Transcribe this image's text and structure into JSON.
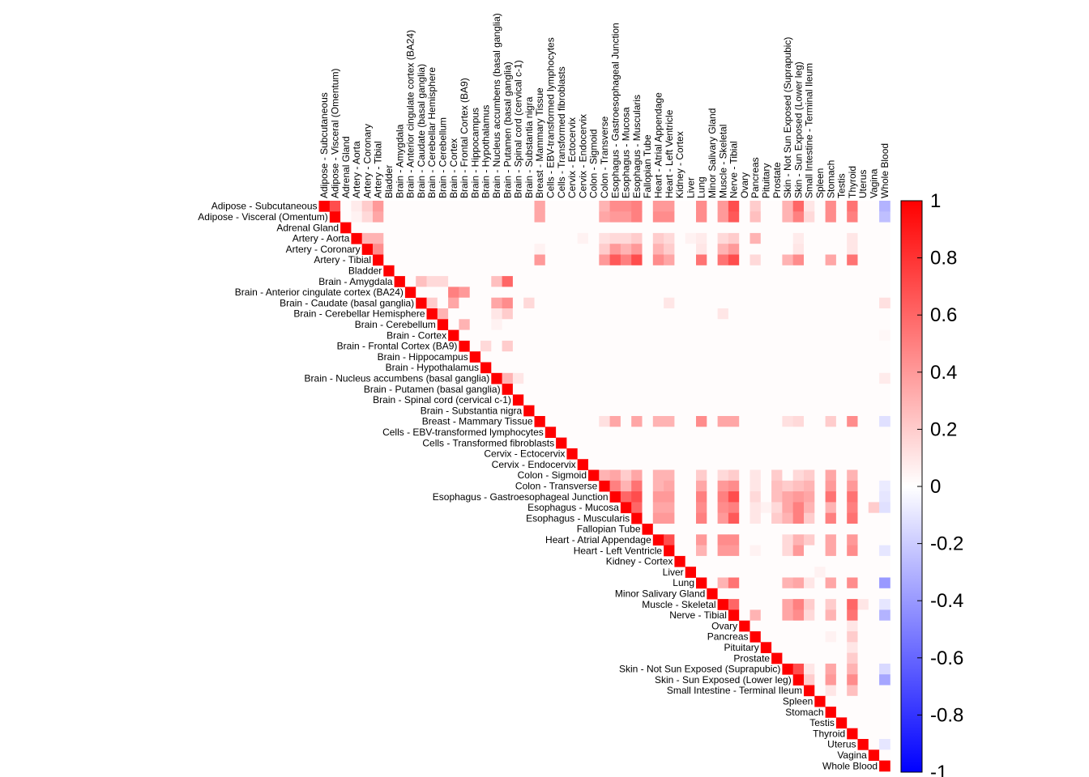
{
  "chart_data": {
    "type": "heatmap",
    "layout": "upper-triangle correlation matrix",
    "labels": [
      "Adipose - Subcutaneous",
      "Adipose - Visceral (Omentum)",
      "Adrenal Gland",
      "Artery - Aorta",
      "Artery - Coronary",
      "Artery - Tibial",
      "Bladder",
      "Brain - Amygdala",
      "Brain - Anterior cingulate cortex (BA24)",
      "Brain - Caudate (basal ganglia)",
      "Brain - Cerebellar Hemisphere",
      "Brain - Cerebellum",
      "Brain - Cortex",
      "Brain - Frontal Cortex (BA9)",
      "Brain - Hippocampus",
      "Brain - Hypothalamus",
      "Brain - Nucleus accumbens (basal ganglia)",
      "Brain - Putamen (basal ganglia)",
      "Brain - Spinal cord (cervical c-1)",
      "Brain - Substantia nigra",
      "Breast - Mammary Tissue",
      "Cells - EBV-transformed lymphocytes",
      "Cells - Transformed fibroblasts",
      "Cervix - Ectocervix",
      "Cervix - Endocervix",
      "Colon - Sigmoid",
      "Colon - Transverse",
      "Esophagus - Gastroesophageal Junction",
      "Esophagus - Mucosa",
      "Esophagus - Muscularis",
      "Fallopian Tube",
      "Heart - Atrial Appendage",
      "Heart - Left Ventricle",
      "Kidney - Cortex",
      "Liver",
      "Lung",
      "Minor Salivary Gland",
      "Muscle - Skeletal",
      "Nerve - Tibial",
      "Ovary",
      "Pancreas",
      "Pituitary",
      "Prostate",
      "Skin - Not Sun Exposed (Suprapubic)",
      "Skin - Sun Exposed (Lower leg)",
      "Small Intestine - Terminal Ileum",
      "Spleen",
      "Stomach",
      "Testis",
      "Thyroid",
      "Uterus",
      "Vagina",
      "Whole Blood"
    ],
    "colorbar": {
      "min": -1,
      "max": 1,
      "ticks": [
        "1",
        "0.8",
        "0.6",
        "0.4",
        "0.2",
        "0",
        "-0.2",
        "-0.4",
        "-0.6",
        "-0.8",
        "-1"
      ],
      "low_color": "#0000ff",
      "mid_color": "#ffffff",
      "high_color": "#ff0000"
    },
    "default_offdiag": 0.01,
    "diagonal": 1,
    "cells": [
      [
        0,
        1,
        0.7
      ],
      [
        0,
        3,
        0.08
      ],
      [
        0,
        4,
        0.2
      ],
      [
        0,
        5,
        0.4
      ],
      [
        0,
        20,
        0.35
      ],
      [
        0,
        26,
        0.3
      ],
      [
        0,
        27,
        0.45
      ],
      [
        0,
        28,
        0.45
      ],
      [
        0,
        29,
        0.5
      ],
      [
        0,
        31,
        0.4
      ],
      [
        0,
        32,
        0.4
      ],
      [
        0,
        35,
        0.45
      ],
      [
        0,
        37,
        0.4
      ],
      [
        0,
        38,
        0.7
      ],
      [
        0,
        40,
        0.2
      ],
      [
        0,
        43,
        0.3
      ],
      [
        0,
        44,
        0.6
      ],
      [
        0,
        45,
        0.1
      ],
      [
        0,
        47,
        0.45
      ],
      [
        0,
        49,
        0.55
      ],
      [
        0,
        52,
        -0.3
      ],
      [
        1,
        3,
        0.05
      ],
      [
        1,
        4,
        0.15
      ],
      [
        1,
        5,
        0.35
      ],
      [
        1,
        20,
        0.35
      ],
      [
        1,
        26,
        0.35
      ],
      [
        1,
        27,
        0.4
      ],
      [
        1,
        28,
        0.4
      ],
      [
        1,
        29,
        0.5
      ],
      [
        1,
        31,
        0.45
      ],
      [
        1,
        32,
        0.45
      ],
      [
        1,
        35,
        0.45
      ],
      [
        1,
        37,
        0.4
      ],
      [
        1,
        38,
        0.65
      ],
      [
        1,
        40,
        0.25
      ],
      [
        1,
        43,
        0.3
      ],
      [
        1,
        44,
        0.5
      ],
      [
        1,
        45,
        0.15
      ],
      [
        1,
        47,
        0.45
      ],
      [
        1,
        49,
        0.5
      ],
      [
        1,
        52,
        -0.25
      ],
      [
        3,
        4,
        0.3
      ],
      [
        3,
        5,
        0.3
      ],
      [
        3,
        24,
        0.05
      ],
      [
        3,
        26,
        0.12
      ],
      [
        3,
        27,
        0.15
      ],
      [
        3,
        28,
        0.15
      ],
      [
        3,
        29,
        0.2
      ],
      [
        3,
        31,
        0.2
      ],
      [
        3,
        32,
        0.15
      ],
      [
        3,
        34,
        0.05
      ],
      [
        3,
        35,
        0.08
      ],
      [
        3,
        37,
        0.15
      ],
      [
        3,
        38,
        0.2
      ],
      [
        3,
        40,
        0.3
      ],
      [
        3,
        44,
        0.08
      ],
      [
        3,
        49,
        0.1
      ],
      [
        4,
        5,
        0.45
      ],
      [
        4,
        20,
        0.05
      ],
      [
        4,
        26,
        0.2
      ],
      [
        4,
        27,
        0.4
      ],
      [
        4,
        28,
        0.3
      ],
      [
        4,
        29,
        0.4
      ],
      [
        4,
        31,
        0.3
      ],
      [
        4,
        32,
        0.2
      ],
      [
        4,
        35,
        0.1
      ],
      [
        4,
        37,
        0.3
      ],
      [
        4,
        38,
        0.4
      ],
      [
        4,
        44,
        0.1
      ],
      [
        4,
        49,
        0.1
      ],
      [
        5,
        20,
        0.4
      ],
      [
        5,
        26,
        0.4
      ],
      [
        5,
        27,
        0.65
      ],
      [
        5,
        28,
        0.5
      ],
      [
        5,
        29,
        0.7
      ],
      [
        5,
        31,
        0.45
      ],
      [
        5,
        32,
        0.35
      ],
      [
        5,
        35,
        0.55
      ],
      [
        5,
        37,
        0.55
      ],
      [
        5,
        38,
        0.7
      ],
      [
        5,
        40,
        0.15
      ],
      [
        5,
        43,
        0.3
      ],
      [
        5,
        44,
        0.45
      ],
      [
        5,
        47,
        0.35
      ],
      [
        5,
        49,
        0.55
      ],
      [
        7,
        9,
        0.25
      ],
      [
        7,
        10,
        0.15
      ],
      [
        7,
        11,
        0.15
      ],
      [
        7,
        16,
        0.25
      ],
      [
        7,
        17,
        0.6
      ],
      [
        8,
        12,
        0.5
      ],
      [
        8,
        13,
        0.4
      ],
      [
        9,
        10,
        0.2
      ],
      [
        9,
        12,
        0.35
      ],
      [
        9,
        16,
        0.35
      ],
      [
        9,
        17,
        0.45
      ],
      [
        9,
        19,
        0.15
      ],
      [
        9,
        32,
        0.1
      ],
      [
        9,
        52,
        0.12
      ],
      [
        10,
        11,
        0.3
      ],
      [
        10,
        16,
        0.1
      ],
      [
        10,
        17,
        0.2
      ],
      [
        10,
        37,
        0.1
      ],
      [
        11,
        13,
        0.3
      ],
      [
        11,
        16,
        0.05
      ],
      [
        12,
        52,
        0.03
      ],
      [
        13,
        15,
        0.15
      ],
      [
        13,
        17,
        0.2
      ],
      [
        16,
        17,
        0.3
      ],
      [
        16,
        18,
        0.1
      ],
      [
        16,
        52,
        0.08
      ],
      [
        20,
        26,
        0.12
      ],
      [
        20,
        27,
        0.35
      ],
      [
        20,
        29,
        0.35
      ],
      [
        20,
        31,
        0.3
      ],
      [
        20,
        32,
        0.3
      ],
      [
        20,
        35,
        0.45
      ],
      [
        20,
        37,
        0.35
      ],
      [
        20,
        38,
        0.35
      ],
      [
        20,
        43,
        0.12
      ],
      [
        20,
        44,
        0.15
      ],
      [
        20,
        47,
        0.2
      ],
      [
        20,
        49,
        0.45
      ],
      [
        20,
        52,
        -0.12
      ],
      [
        25,
        26,
        0.3
      ],
      [
        25,
        27,
        0.35
      ],
      [
        25,
        28,
        0.2
      ],
      [
        25,
        29,
        0.35
      ],
      [
        25,
        31,
        0.3
      ],
      [
        25,
        32,
        0.3
      ],
      [
        25,
        35,
        0.2
      ],
      [
        25,
        37,
        0.15
      ],
      [
        25,
        38,
        0.2
      ],
      [
        25,
        40,
        0.1
      ],
      [
        25,
        42,
        0.2
      ],
      [
        25,
        44,
        0.15
      ],
      [
        25,
        45,
        0.2
      ],
      [
        25,
        47,
        0.35
      ],
      [
        25,
        49,
        0.3
      ],
      [
        26,
        27,
        0.5
      ],
      [
        26,
        28,
        0.3
      ],
      [
        26,
        29,
        0.55
      ],
      [
        26,
        31,
        0.3
      ],
      [
        26,
        32,
        0.35
      ],
      [
        26,
        35,
        0.35
      ],
      [
        26,
        37,
        0.4
      ],
      [
        26,
        38,
        0.45
      ],
      [
        26,
        40,
        0.1
      ],
      [
        26,
        42,
        0.25
      ],
      [
        26,
        43,
        0.2
      ],
      [
        26,
        44,
        0.25
      ],
      [
        26,
        45,
        0.3
      ],
      [
        26,
        47,
        0.4
      ],
      [
        26,
        49,
        0.4
      ],
      [
        26,
        52,
        -0.08
      ],
      [
        27,
        28,
        0.6
      ],
      [
        27,
        29,
        0.7
      ],
      [
        27,
        31,
        0.4
      ],
      [
        27,
        32,
        0.4
      ],
      [
        27,
        35,
        0.5
      ],
      [
        27,
        37,
        0.5
      ],
      [
        27,
        38,
        0.7
      ],
      [
        27,
        40,
        0.15
      ],
      [
        27,
        42,
        0.25
      ],
      [
        27,
        43,
        0.35
      ],
      [
        27,
        44,
        0.4
      ],
      [
        27,
        45,
        0.35
      ],
      [
        27,
        47,
        0.55
      ],
      [
        27,
        49,
        0.55
      ],
      [
        27,
        52,
        -0.1
      ],
      [
        28,
        29,
        0.6
      ],
      [
        28,
        31,
        0.35
      ],
      [
        28,
        32,
        0.35
      ],
      [
        28,
        35,
        0.45
      ],
      [
        28,
        37,
        0.45
      ],
      [
        28,
        38,
        0.5
      ],
      [
        28,
        40,
        0.1
      ],
      [
        28,
        41,
        0.05
      ],
      [
        28,
        42,
        0.15
      ],
      [
        28,
        43,
        0.35
      ],
      [
        28,
        44,
        0.5
      ],
      [
        28,
        45,
        0.3
      ],
      [
        28,
        47,
        0.3
      ],
      [
        28,
        49,
        0.5
      ],
      [
        28,
        51,
        0.2
      ],
      [
        28,
        52,
        -0.12
      ],
      [
        29,
        31,
        0.4
      ],
      [
        29,
        32,
        0.4
      ],
      [
        29,
        35,
        0.5
      ],
      [
        29,
        37,
        0.4
      ],
      [
        29,
        38,
        0.65
      ],
      [
        29,
        40,
        0.1
      ],
      [
        29,
        42,
        0.2
      ],
      [
        29,
        43,
        0.3
      ],
      [
        29,
        44,
        0.5
      ],
      [
        29,
        45,
        0.2
      ],
      [
        29,
        47,
        0.5
      ],
      [
        29,
        49,
        0.55
      ],
      [
        31,
        32,
        0.7
      ],
      [
        31,
        35,
        0.4
      ],
      [
        31,
        37,
        0.45
      ],
      [
        31,
        38,
        0.45
      ],
      [
        31,
        43,
        0.15
      ],
      [
        31,
        44,
        0.3
      ],
      [
        31,
        45,
        0.2
      ],
      [
        31,
        47,
        0.35
      ],
      [
        31,
        49,
        0.4
      ],
      [
        32,
        35,
        0.3
      ],
      [
        32,
        37,
        0.4
      ],
      [
        32,
        38,
        0.4
      ],
      [
        32,
        40,
        0.05
      ],
      [
        32,
        43,
        0.15
      ],
      [
        32,
        44,
        0.4
      ],
      [
        32,
        47,
        0.35
      ],
      [
        32,
        49,
        0.45
      ],
      [
        32,
        52,
        -0.1
      ],
      [
        34,
        46,
        0.05
      ],
      [
        35,
        37,
        0.3
      ],
      [
        35,
        38,
        0.55
      ],
      [
        35,
        43,
        0.3
      ],
      [
        35,
        44,
        0.35
      ],
      [
        35,
        45,
        0.1
      ],
      [
        35,
        47,
        0.35
      ],
      [
        35,
        49,
        0.45
      ],
      [
        35,
        52,
        -0.4
      ],
      [
        37,
        38,
        0.6
      ],
      [
        37,
        43,
        0.35
      ],
      [
        37,
        44,
        0.5
      ],
      [
        37,
        45,
        0.2
      ],
      [
        37,
        47,
        0.2
      ],
      [
        37,
        49,
        0.6
      ],
      [
        37,
        50,
        0.1
      ],
      [
        37,
        52,
        -0.1
      ],
      [
        38,
        40,
        0.3
      ],
      [
        38,
        43,
        0.35
      ],
      [
        38,
        44,
        0.45
      ],
      [
        38,
        45,
        0.15
      ],
      [
        38,
        47,
        0.3
      ],
      [
        38,
        49,
        0.55
      ],
      [
        38,
        52,
        -0.3
      ],
      [
        39,
        49,
        0.1
      ],
      [
        40,
        47,
        0.05
      ],
      [
        40,
        49,
        0.2
      ],
      [
        41,
        49,
        0.1
      ],
      [
        42,
        49,
        0.2
      ],
      [
        43,
        44,
        0.7
      ],
      [
        43,
        45,
        0.1
      ],
      [
        43,
        47,
        0.35
      ],
      [
        43,
        49,
        0.3
      ],
      [
        43,
        52,
        -0.15
      ],
      [
        44,
        45,
        0.2
      ],
      [
        44,
        47,
        0.4
      ],
      [
        44,
        49,
        0.45
      ],
      [
        44,
        52,
        -0.35
      ],
      [
        45,
        47,
        0.1
      ],
      [
        45,
        49,
        0.25
      ],
      [
        50,
        52,
        -0.1
      ]
    ]
  }
}
